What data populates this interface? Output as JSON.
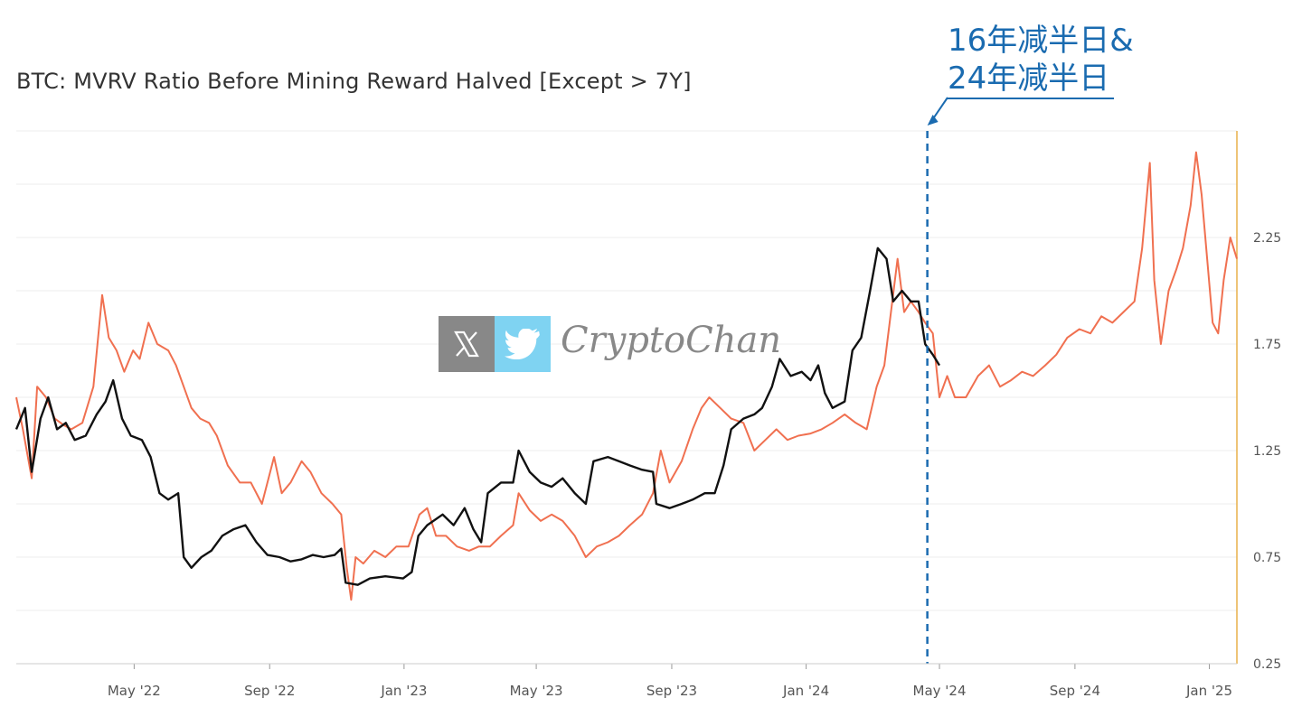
{
  "chart_data": {
    "type": "line",
    "title": "BTC: MVRV Ratio Before Mining Reward Halved [Except > 7Y]",
    "x_ticks": [
      "May '22",
      "Sep '22",
      "Jan '23",
      "May '23",
      "Sep '23",
      "Jan '24",
      "May '24",
      "Sep '24",
      "Jan '25"
    ],
    "y_ticks": [
      0.25,
      0.75,
      1.25,
      1.75,
      2.25
    ],
    "ylim": [
      0.25,
      2.75
    ],
    "xlim": [
      "2022-01-14",
      "2025-01-26"
    ],
    "grid": "horizontal",
    "series": [
      {
        "color": "#f07050",
        "points": [
          [
            "2022-01-14",
            1.5
          ],
          [
            "2022-01-20",
            1.35
          ],
          [
            "2022-01-28",
            1.12
          ],
          [
            "2022-02-02",
            1.55
          ],
          [
            "2022-02-10",
            1.5
          ],
          [
            "2022-02-18",
            1.4
          ],
          [
            "2022-02-26",
            1.37
          ],
          [
            "2022-03-05",
            1.35
          ],
          [
            "2022-03-15",
            1.38
          ],
          [
            "2022-03-25",
            1.55
          ],
          [
            "2022-04-02",
            1.98
          ],
          [
            "2022-04-08",
            1.78
          ],
          [
            "2022-04-15",
            1.72
          ],
          [
            "2022-04-22",
            1.62
          ],
          [
            "2022-04-30",
            1.72
          ],
          [
            "2022-05-06",
            1.68
          ],
          [
            "2022-05-14",
            1.85
          ],
          [
            "2022-05-22",
            1.75
          ],
          [
            "2022-06-01",
            1.72
          ],
          [
            "2022-06-08",
            1.65
          ],
          [
            "2022-06-15",
            1.55
          ],
          [
            "2022-06-22",
            1.45
          ],
          [
            "2022-06-30",
            1.4
          ],
          [
            "2022-07-08",
            1.38
          ],
          [
            "2022-07-15",
            1.32
          ],
          [
            "2022-07-25",
            1.18
          ],
          [
            "2022-08-05",
            1.1
          ],
          [
            "2022-08-15",
            1.1
          ],
          [
            "2022-08-25",
            1.0
          ],
          [
            "2022-09-05",
            1.22
          ],
          [
            "2022-09-12",
            1.05
          ],
          [
            "2022-09-20",
            1.1
          ],
          [
            "2022-09-30",
            1.2
          ],
          [
            "2022-10-08",
            1.15
          ],
          [
            "2022-10-18",
            1.05
          ],
          [
            "2022-10-28",
            1.0
          ],
          [
            "2022-11-05",
            0.95
          ],
          [
            "2022-11-10",
            0.7
          ],
          [
            "2022-11-14",
            0.55
          ],
          [
            "2022-11-18",
            0.75
          ],
          [
            "2022-11-25",
            0.72
          ],
          [
            "2022-12-05",
            0.78
          ],
          [
            "2022-12-15",
            0.75
          ],
          [
            "2022-12-25",
            0.8
          ],
          [
            "2023-01-05",
            0.8
          ],
          [
            "2023-01-15",
            0.95
          ],
          [
            "2023-01-22",
            0.98
          ],
          [
            "2023-01-30",
            0.85
          ],
          [
            "2023-02-08",
            0.85
          ],
          [
            "2023-02-18",
            0.8
          ],
          [
            "2023-03-01",
            0.78
          ],
          [
            "2023-03-10",
            0.8
          ],
          [
            "2023-03-20",
            0.8
          ],
          [
            "2023-03-30",
            0.85
          ],
          [
            "2023-04-10",
            0.9
          ],
          [
            "2023-04-15",
            1.05
          ],
          [
            "2023-04-25",
            0.97
          ],
          [
            "2023-05-05",
            0.92
          ],
          [
            "2023-05-15",
            0.95
          ],
          [
            "2023-05-25",
            0.92
          ],
          [
            "2023-06-05",
            0.85
          ],
          [
            "2023-06-15",
            0.75
          ],
          [
            "2023-06-25",
            0.8
          ],
          [
            "2023-07-05",
            0.82
          ],
          [
            "2023-07-15",
            0.85
          ],
          [
            "2023-07-25",
            0.9
          ],
          [
            "2023-08-05",
            0.95
          ],
          [
            "2023-08-15",
            1.05
          ],
          [
            "2023-08-22",
            1.25
          ],
          [
            "2023-08-30",
            1.1
          ],
          [
            "2023-09-10",
            1.2
          ],
          [
            "2023-09-20",
            1.35
          ],
          [
            "2023-09-28",
            1.45
          ],
          [
            "2023-10-05",
            1.5
          ],
          [
            "2023-10-15",
            1.45
          ],
          [
            "2023-10-25",
            1.4
          ],
          [
            "2023-11-05",
            1.38
          ],
          [
            "2023-11-15",
            1.25
          ],
          [
            "2023-11-25",
            1.3
          ],
          [
            "2023-12-05",
            1.35
          ],
          [
            "2023-12-15",
            1.3
          ],
          [
            "2023-12-25",
            1.32
          ],
          [
            "2024-01-05",
            1.33
          ],
          [
            "2024-01-15",
            1.35
          ],
          [
            "2024-01-25",
            1.38
          ],
          [
            "2024-02-05",
            1.42
          ],
          [
            "2024-02-15",
            1.38
          ],
          [
            "2024-02-25",
            1.35
          ],
          [
            "2024-03-05",
            1.55
          ],
          [
            "2024-03-12",
            1.65
          ],
          [
            "2024-03-18",
            1.9
          ],
          [
            "2024-03-24",
            2.15
          ],
          [
            "2024-03-30",
            1.9
          ],
          [
            "2024-04-05",
            1.95
          ],
          [
            "2024-04-12",
            1.9
          ],
          [
            "2024-04-18",
            1.85
          ],
          [
            "2024-04-25",
            1.8
          ],
          [
            "2024-05-01",
            1.5
          ],
          [
            "2024-05-08",
            1.6
          ],
          [
            "2024-05-15",
            1.5
          ],
          [
            "2024-05-25",
            1.5
          ],
          [
            "2024-06-05",
            1.6
          ],
          [
            "2024-06-15",
            1.65
          ],
          [
            "2024-06-25",
            1.55
          ],
          [
            "2024-07-05",
            1.58
          ],
          [
            "2024-07-15",
            1.62
          ],
          [
            "2024-07-25",
            1.6
          ],
          [
            "2024-08-05",
            1.65
          ],
          [
            "2024-08-15",
            1.7
          ],
          [
            "2024-08-25",
            1.78
          ],
          [
            "2024-09-05",
            1.82
          ],
          [
            "2024-09-15",
            1.8
          ],
          [
            "2024-09-25",
            1.88
          ],
          [
            "2024-10-05",
            1.85
          ],
          [
            "2024-10-15",
            1.9
          ],
          [
            "2024-10-25",
            1.95
          ],
          [
            "2024-11-01",
            2.2
          ],
          [
            "2024-11-08",
            2.6
          ],
          [
            "2024-11-12",
            2.05
          ],
          [
            "2024-11-18",
            1.75
          ],
          [
            "2024-11-25",
            2.0
          ],
          [
            "2024-12-02",
            2.1
          ],
          [
            "2024-12-08",
            2.2
          ],
          [
            "2024-12-15",
            2.4
          ],
          [
            "2024-12-20",
            2.65
          ],
          [
            "2024-12-25",
            2.45
          ],
          [
            "2024-12-30",
            2.15
          ],
          [
            "2025-01-04",
            1.85
          ],
          [
            "2025-01-09",
            1.8
          ],
          [
            "2025-01-14",
            2.05
          ],
          [
            "2025-01-20",
            2.25
          ],
          [
            "2025-01-26",
            2.15
          ]
        ]
      },
      {
        "color": "#111111",
        "points": [
          [
            "2022-01-14",
            1.35
          ],
          [
            "2022-01-22",
            1.45
          ],
          [
            "2022-01-28",
            1.15
          ],
          [
            "2022-02-05",
            1.4
          ],
          [
            "2022-02-12",
            1.5
          ],
          [
            "2022-02-20",
            1.35
          ],
          [
            "2022-02-28",
            1.38
          ],
          [
            "2022-03-08",
            1.3
          ],
          [
            "2022-03-18",
            1.32
          ],
          [
            "2022-03-28",
            1.42
          ],
          [
            "2022-04-05",
            1.48
          ],
          [
            "2022-04-12",
            1.58
          ],
          [
            "2022-04-20",
            1.4
          ],
          [
            "2022-04-28",
            1.32
          ],
          [
            "2022-05-08",
            1.3
          ],
          [
            "2022-05-16",
            1.22
          ],
          [
            "2022-05-24",
            1.05
          ],
          [
            "2022-06-01",
            1.02
          ],
          [
            "2022-06-10",
            1.05
          ],
          [
            "2022-06-15",
            0.75
          ],
          [
            "2022-06-22",
            0.7
          ],
          [
            "2022-07-01",
            0.75
          ],
          [
            "2022-07-10",
            0.78
          ],
          [
            "2022-07-20",
            0.85
          ],
          [
            "2022-07-30",
            0.88
          ],
          [
            "2022-08-10",
            0.9
          ],
          [
            "2022-08-20",
            0.82
          ],
          [
            "2022-08-30",
            0.76
          ],
          [
            "2022-09-10",
            0.75
          ],
          [
            "2022-09-20",
            0.73
          ],
          [
            "2022-09-30",
            0.74
          ],
          [
            "2022-10-10",
            0.76
          ],
          [
            "2022-10-20",
            0.75
          ],
          [
            "2022-10-30",
            0.76
          ],
          [
            "2022-11-05",
            0.79
          ],
          [
            "2022-11-09",
            0.63
          ],
          [
            "2022-11-20",
            0.62
          ],
          [
            "2022-12-01",
            0.65
          ],
          [
            "2022-12-15",
            0.66
          ],
          [
            "2022-12-31",
            0.65
          ],
          [
            "2023-01-08",
            0.68
          ],
          [
            "2023-01-14",
            0.85
          ],
          [
            "2023-01-22",
            0.9
          ],
          [
            "2023-02-05",
            0.95
          ],
          [
            "2023-02-15",
            0.9
          ],
          [
            "2023-02-25",
            0.98
          ],
          [
            "2023-03-05",
            0.88
          ],
          [
            "2023-03-12",
            0.82
          ],
          [
            "2023-03-18",
            1.05
          ],
          [
            "2023-03-30",
            1.1
          ],
          [
            "2023-04-10",
            1.1
          ],
          [
            "2023-04-15",
            1.25
          ],
          [
            "2023-04-25",
            1.15
          ],
          [
            "2023-05-05",
            1.1
          ],
          [
            "2023-05-15",
            1.08
          ],
          [
            "2023-05-25",
            1.12
          ],
          [
            "2023-06-05",
            1.05
          ],
          [
            "2023-06-15",
            1.0
          ],
          [
            "2023-06-22",
            1.2
          ],
          [
            "2023-07-05",
            1.22
          ],
          [
            "2023-07-15",
            1.2
          ],
          [
            "2023-07-25",
            1.18
          ],
          [
            "2023-08-05",
            1.16
          ],
          [
            "2023-08-15",
            1.15
          ],
          [
            "2023-08-18",
            1.0
          ],
          [
            "2023-08-30",
            0.98
          ],
          [
            "2023-09-10",
            1.0
          ],
          [
            "2023-09-20",
            1.02
          ],
          [
            "2023-10-01",
            1.05
          ],
          [
            "2023-10-10",
            1.05
          ],
          [
            "2023-10-18",
            1.18
          ],
          [
            "2023-10-25",
            1.35
          ],
          [
            "2023-11-05",
            1.4
          ],
          [
            "2023-11-15",
            1.42
          ],
          [
            "2023-11-22",
            1.45
          ],
          [
            "2023-12-01",
            1.55
          ],
          [
            "2023-12-08",
            1.68
          ],
          [
            "2023-12-18",
            1.6
          ],
          [
            "2023-12-28",
            1.62
          ],
          [
            "2024-01-05",
            1.58
          ],
          [
            "2024-01-12",
            1.65
          ],
          [
            "2024-01-18",
            1.52
          ],
          [
            "2024-01-25",
            1.45
          ],
          [
            "2024-02-05",
            1.48
          ],
          [
            "2024-02-12",
            1.72
          ],
          [
            "2024-02-20",
            1.78
          ],
          [
            "2024-02-28",
            2.0
          ],
          [
            "2024-03-06",
            2.2
          ],
          [
            "2024-03-14",
            2.15
          ],
          [
            "2024-03-20",
            1.95
          ],
          [
            "2024-03-28",
            2.0
          ],
          [
            "2024-04-05",
            1.95
          ],
          [
            "2024-04-12",
            1.95
          ],
          [
            "2024-04-18",
            1.75
          ],
          [
            "2024-04-25",
            1.7
          ],
          [
            "2024-05-01",
            1.65
          ]
        ]
      }
    ],
    "annotations": [
      "16年减半日&",
      "24年减半日"
    ],
    "annotation_color": "#1a6bb0",
    "marker_date": "2024-04-20",
    "right_edge_date": "2025-01-26",
    "right_edge_color": "#e8b04a"
  },
  "watermark": {
    "text": "CryptoChan",
    "x_icon": "x-logo-icon",
    "bird_icon": "twitter-bird-icon"
  }
}
